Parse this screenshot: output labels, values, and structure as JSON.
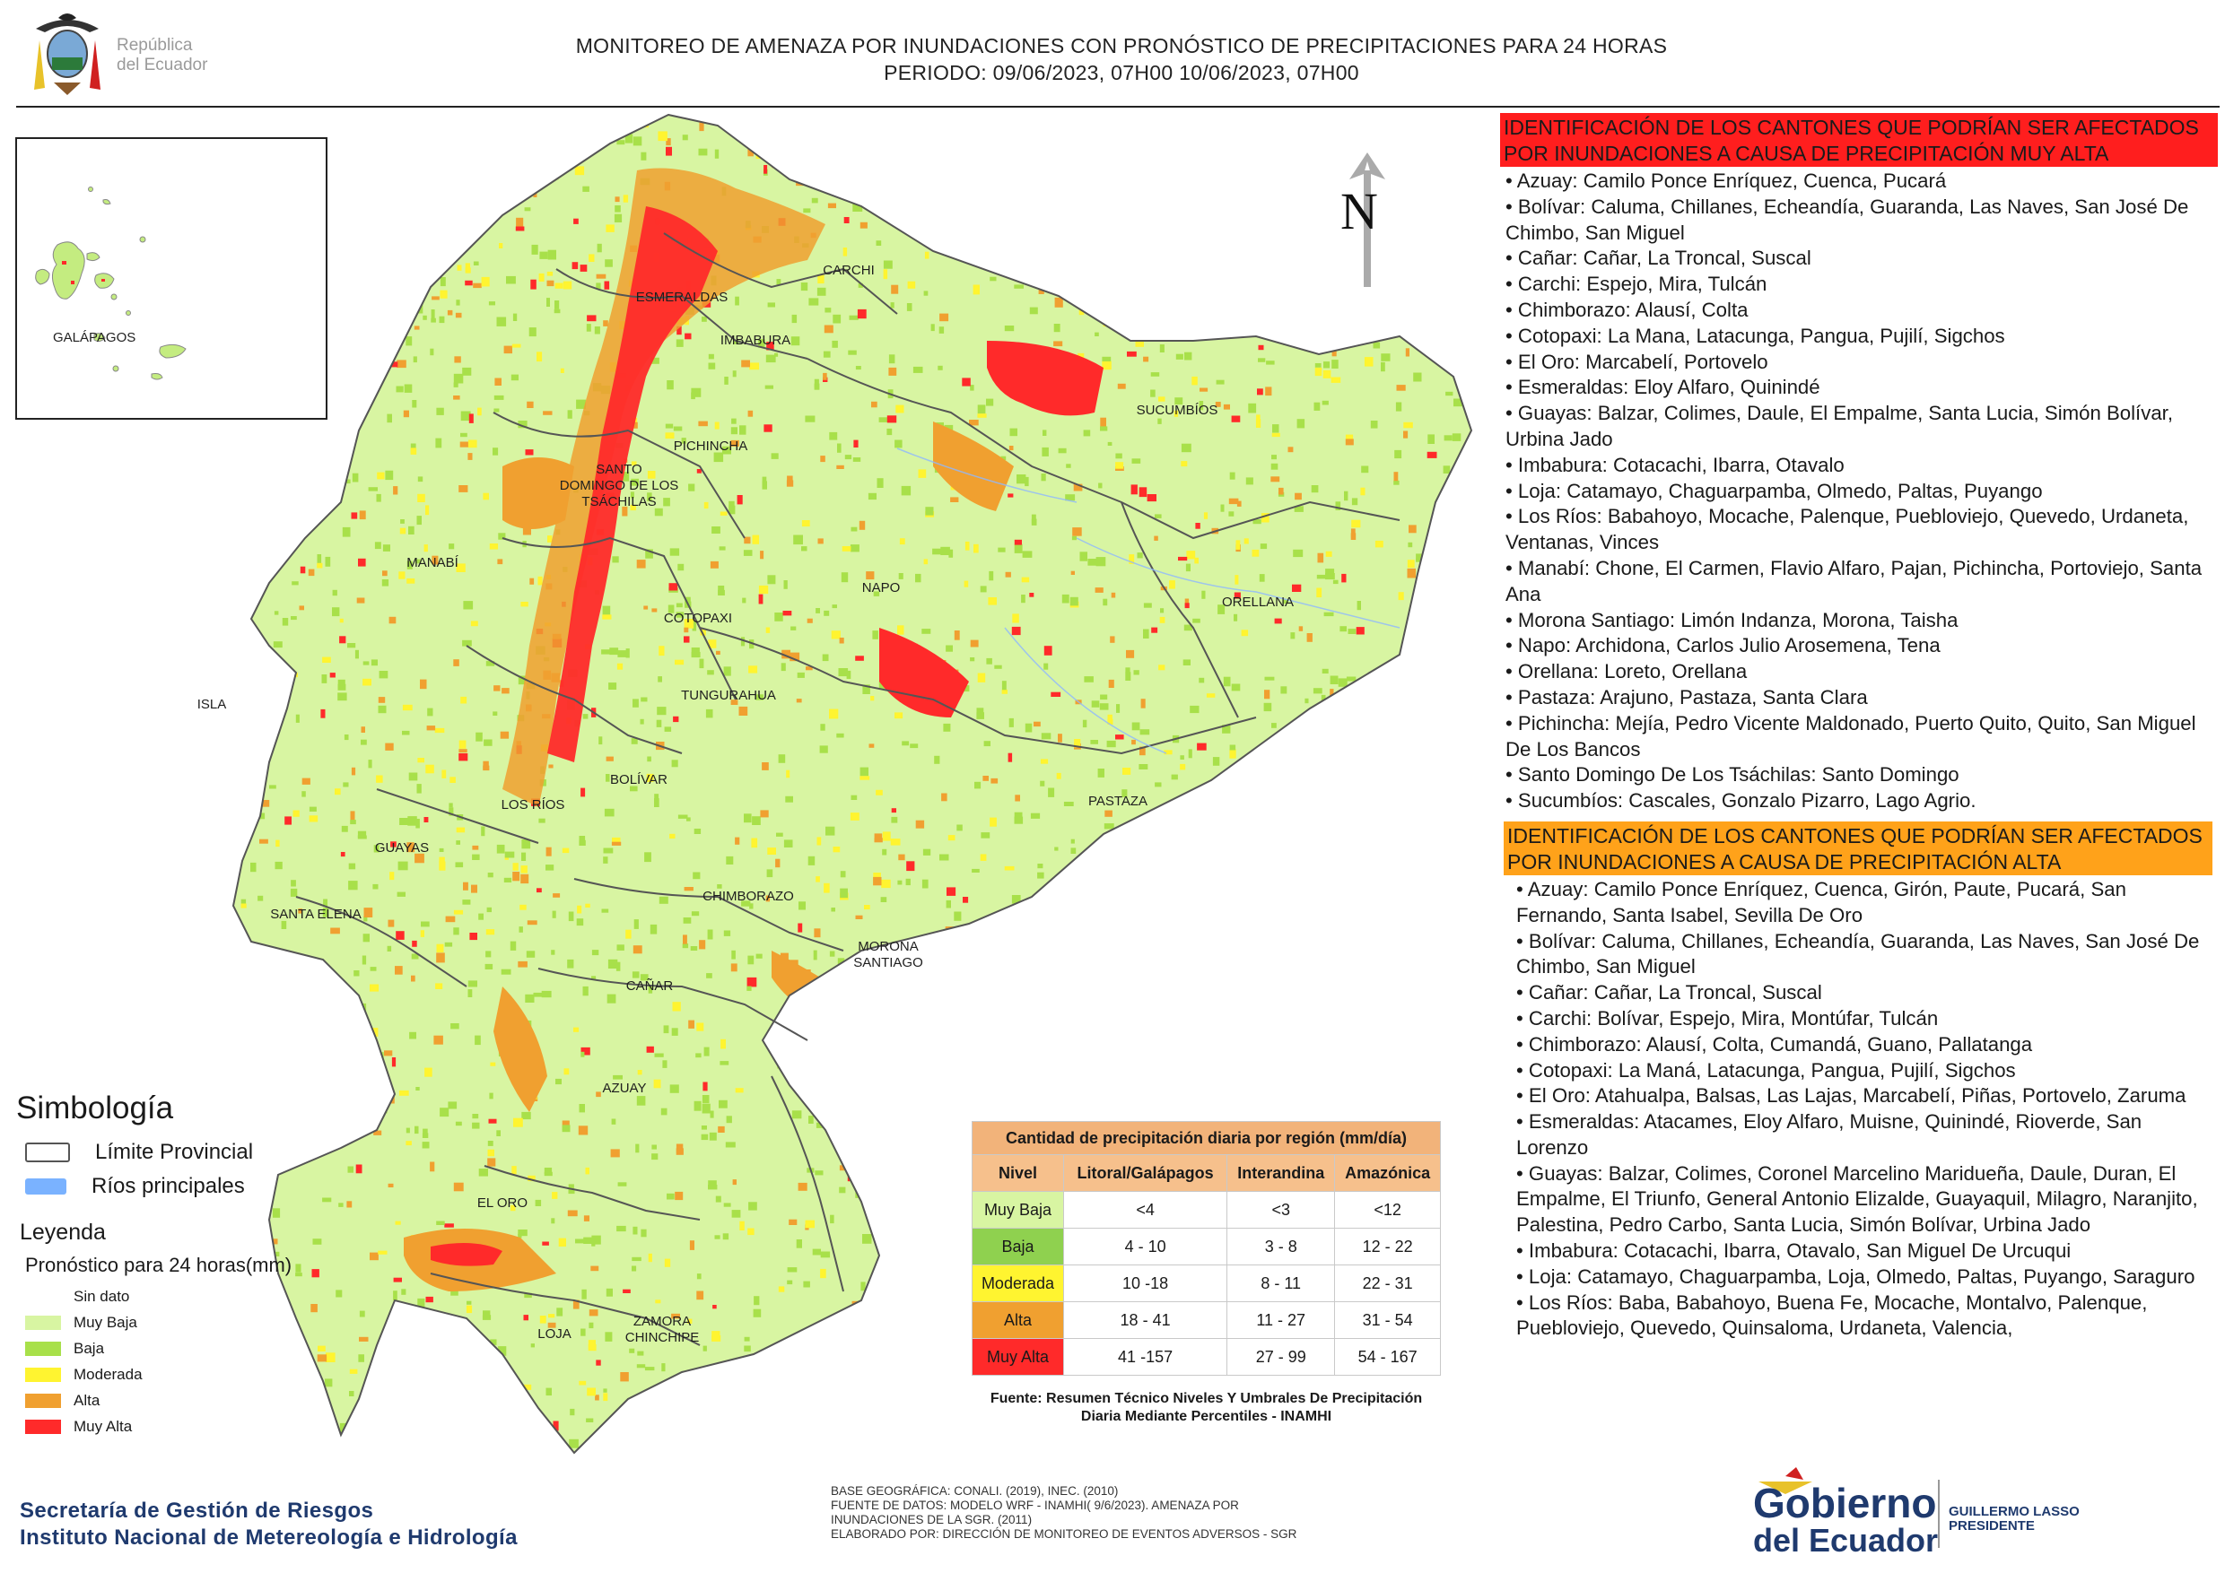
{
  "header": {
    "logo_text_line1": "República",
    "logo_text_line2": "del Ecuador",
    "title_line1": "MONITOREO DE AMENAZA POR INUNDACIONES  CON PRONÓSTICO DE  PRECIPITACIONES PARA 24 HORAS",
    "title_line2": "PERIODO: 09/06/2023, 07H00 10/06/2023, 07H00"
  },
  "map": {
    "north_label": "N",
    "galapagos_label": "GALÁPAGOS",
    "province_labels": [
      "CARCHI",
      "ESMERALDAS",
      "IMBABURA",
      "SUCUMBÍOS",
      "PICHINCHA",
      "SANTO DOMINGO DE LOS TSÁCHILAS",
      "MANABÍ",
      "NAPO",
      "ORELLANA",
      "COTOPAXI",
      "TUNGURAHUA",
      "ISLA",
      "BOLÍVAR",
      "LOS RÍOS",
      "PASTAZA",
      "GUAYAS",
      "CHIMBORAZO",
      "SANTA ELENA",
      "MORONA SANTIAGO",
      "CAÑAR",
      "AZUAY",
      "EL ORO",
      "ZAMORA CHINCHIPE",
      "LOJA"
    ],
    "colors": {
      "sin_dato": "#ffffff",
      "muy_baja": "#d8f5a2",
      "baja": "#a8e04a",
      "moderada": "#fff430",
      "alta": "#f0a030",
      "muy_alta": "#ff2a2a",
      "limite": "#555555",
      "rios": "#7ab2ff"
    }
  },
  "panel": {
    "muy_alta_heading": "IDENTIFICACIÓN DE LOS CANTONES QUE PODRÍAN SER AFECTADOS POR INUNDACIONES  A CAUSA DE PRECIPITACIÓN MUY ALTA",
    "muy_alta_items": [
      "Azuay: Camilo Ponce Enríquez, Cuenca, Pucará",
      "Bolívar: Caluma, Chillanes, Echeandía, Guaranda, Las Naves, San José De Chimbo, San Miguel",
      "Cañar: Cañar, La Troncal, Suscal",
      "Carchi: Espejo, Mira, Tulcán",
      "Chimborazo: Alausí, Colta",
      "Cotopaxi: La Mana, Latacunga, Pangua, Pujilí, Sigchos",
      "El Oro: Marcabelí, Portovelo",
      "Esmeraldas: Eloy Alfaro, Quinindé",
      "Guayas: Balzar, Colimes, Daule, El Empalme, Santa Lucia, Simón Bolívar, Urbina Jado",
      "Imbabura: Cotacachi, Ibarra, Otavalo",
      "Loja: Catamayo, Chaguarpamba, Olmedo, Paltas, Puyango",
      "Los Ríos: Babahoyo, Mocache, Palenque, Puebloviejo, Quevedo, Urdaneta, Ventanas, Vinces",
      "Manabí: Chone, El Carmen, Flavio Alfaro, Pajan, Pichincha, Portoviejo, Santa Ana",
      "Morona Santiago: Limón Indanza, Morona, Taisha",
      "Napo: Archidona, Carlos Julio Arosemena, Tena",
      "Orellana: Loreto, Orellana",
      "Pastaza: Arajuno, Pastaza, Santa Clara",
      "Pichincha: Mejía, Pedro Vicente Maldonado, Puerto Quito, Quito, San Miguel De Los Bancos",
      "Santo Domingo De Los Tsáchilas: Santo Domingo",
      "Sucumbíos: Cascales, Gonzalo Pizarro, Lago Agrio."
    ],
    "alta_heading": "IDENTIFICACIÓN DE LOS CANTONES QUE  PODRÍAN SER AFECTADOS POR INUNDACIONES  A CAUSA DE PRECIPITACIÓN ALTA",
    "alta_items": [
      "Azuay: Camilo Ponce Enríquez, Cuenca, Girón, Paute, Pucará, San Fernando, Santa Isabel, Sevilla De Oro",
      "Bolívar: Caluma, Chillanes, Echeandía, Guaranda, Las Naves, San José De Chimbo, San Miguel",
      "Cañar: Cañar, La Troncal, Suscal",
      "Carchi: Bolívar, Espejo, Mira, Montúfar, Tulcán",
      "Chimborazo: Alausí, Colta, Cumandá, Guano, Pallatanga",
      "Cotopaxi: La Maná, Latacunga, Pangua, Pujilí, Sigchos",
      "El Oro: Atahualpa, Balsas, Las Lajas, Marcabelí, Piñas, Portovelo, Zaruma",
      "Esmeraldas: Atacames, Eloy Alfaro, Muisne, Quinindé, Rioverde, San Lorenzo",
      "Guayas: Balzar, Colimes, Coronel Marcelino Maridueña, Daule, Duran, El Empalme, El Triunfo, General Antonio Elizalde, Guayaquil, Milagro, Naranjito, Palestina, Pedro Carbo, Santa Lucia, Simón Bolívar, Urbina Jado",
      "Imbabura: Cotacachi, Ibarra, Otavalo, San Miguel De Urcuqui",
      "Loja: Catamayo, Chaguarpamba, Loja, Olmedo, Paltas, Puyango, Saraguro",
      "Los Ríos: Baba, Babahoyo, Buena Fe, Mocache, Montalvo, Palenque, Puebloviejo, Quevedo, Quinsaloma, Urdaneta, Valencia,"
    ]
  },
  "simbologia": {
    "title": "Simbología",
    "limite": "Límite Provincial",
    "rios": "Ríos principales"
  },
  "leyenda": {
    "title": "Leyenda",
    "subtitle": "Pronóstico para 24 horas(mm)",
    "items": [
      {
        "label": "Sin dato",
        "color": "#ffffff"
      },
      {
        "label": "Muy Baja",
        "color": "#d8f5a2"
      },
      {
        "label": "Baja",
        "color": "#a8e04a"
      },
      {
        "label": "Moderada",
        "color": "#fff430"
      },
      {
        "label": "Alta",
        "color": "#f0a030"
      },
      {
        "label": "Muy Alta",
        "color": "#ff2a2a"
      }
    ]
  },
  "precip_table": {
    "caption": "Cantidad de precipitación diaria por región (mm/día)",
    "headers": [
      "Nivel",
      "Litoral/Galápagos",
      "Interandina",
      "Amazónica"
    ],
    "rows": [
      {
        "nivel": "Muy Baja",
        "color": "#d8f5a2",
        "litoral": "<4",
        "interandina": "<3",
        "amazonica": "<12"
      },
      {
        "nivel": "Baja",
        "color": "#8fd14f",
        "litoral": "4 - 10",
        "interandina": "3 - 8",
        "amazonica": "12 - 22"
      },
      {
        "nivel": "Moderada",
        "color": "#fff430",
        "litoral": "10 -18",
        "interandina": "8 - 11",
        "amazonica": "22 - 31"
      },
      {
        "nivel": "Alta",
        "color": "#f0a030",
        "litoral": "18 - 41",
        "interandina": "11 - 27",
        "amazonica": "31 - 54"
      },
      {
        "nivel": "Muy Alta",
        "color": "#ff2a2a",
        "litoral": "41 -157",
        "interandina": "27 - 99",
        "amazonica": "54 - 167"
      }
    ],
    "fuente": "Fuente: Resumen Técnico Niveles Y Umbrales De Precipitación Diaria Mediante Percentiles - INAMHI"
  },
  "footer": {
    "sgr_line1": "Secretaría de Gestión de Riesgos",
    "sgr_line2": "Instituto Nacional de Metereología e Hidrología",
    "base_lines": [
      "BASE GEOGRÁFICA: CONALI. (2019), INEC. (2010)",
      "FUENTE DE DATOS: MODELO WRF - INAMHI( 9/6/2023).  AMENAZA POR",
      "INUNDACIONES DE LA SGR. (2011)",
      "ELABORADO POR: DIRECCIÓN DE MONITOREO DE EVENTOS ADVERSOS - SGR"
    ],
    "gob_line1": "Gobierno",
    "gob_line2": "del Ecuador",
    "president_line1": "GUILLERMO LASSO",
    "president_line2": "PRESIDENTE"
  }
}
